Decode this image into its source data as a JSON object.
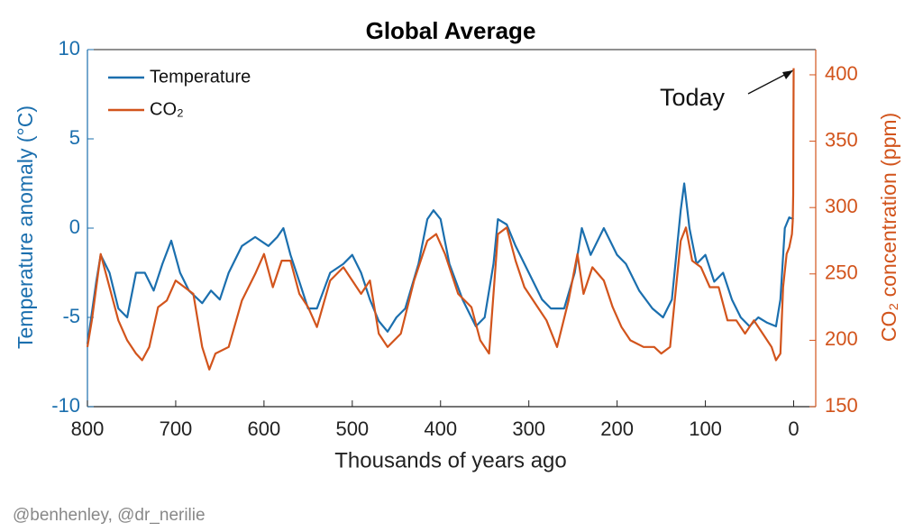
{
  "chart_data": {
    "type": "line",
    "title": "Global Average",
    "x_label": "Thousands of years ago",
    "y_label": "Temperature anomaly (°C)",
    "y2_label": "CO₂ concentration (ppm)",
    "xlim": [
      800,
      -25
    ],
    "xticks": [
      800,
      700,
      600,
      500,
      400,
      300,
      200,
      100,
      0
    ],
    "ylim": [
      -10,
      10
    ],
    "yticks": [
      -10,
      -5,
      0,
      5,
      10
    ],
    "y2lim": [
      150,
      419
    ],
    "y2ticks": [
      150,
      200,
      250,
      300,
      350,
      400
    ],
    "legend": "upper left",
    "annotations": [
      {
        "text": "Today"
      }
    ],
    "source": "@benhenley, @dr_nerilie",
    "series": [
      {
        "name": "Temperature",
        "color": "#1b6fae",
        "x": [
          800,
          790,
          785,
          775,
          765,
          755,
          745,
          735,
          725,
          715,
          705,
          695,
          685,
          670,
          660,
          650,
          640,
          625,
          610,
          595,
          585,
          578,
          570,
          560,
          550,
          540,
          525,
          510,
          500,
          490,
          480,
          470,
          460,
          450,
          440,
          425,
          415,
          408,
          400,
          390,
          375,
          360,
          350,
          340,
          335,
          325,
          315,
          300,
          285,
          275,
          260,
          248,
          240,
          230,
          215,
          200,
          190,
          175,
          160,
          148,
          138,
          128,
          124,
          118,
          110,
          100,
          90,
          80,
          70,
          60,
          50,
          40,
          30,
          20,
          15,
          10,
          5,
          0
        ],
        "values": [
          -6.5,
          -3,
          -1.5,
          -2.5,
          -4.5,
          -5,
          -2.5,
          -2.5,
          -3.5,
          -2,
          -0.7,
          -2.5,
          -3.5,
          -4.2,
          -3.5,
          -4,
          -2.5,
          -1,
          -0.5,
          -1,
          -0.5,
          0,
          -1.5,
          -3,
          -4.5,
          -4.5,
          -2.5,
          -2,
          -1.5,
          -2.5,
          -4,
          -5.2,
          -5.8,
          -5,
          -4.5,
          -2,
          0.5,
          1,
          0.5,
          -2,
          -4,
          -5.5,
          -5,
          -2,
          0.5,
          0.2,
          -1,
          -2.5,
          -4,
          -4.5,
          -4.5,
          -2.5,
          0,
          -1.5,
          0,
          -1.5,
          -2,
          -3.5,
          -4.5,
          -5,
          -4,
          1,
          2.5,
          0,
          -2,
          -1.5,
          -3,
          -2.5,
          -4,
          -5,
          -5.5,
          -5,
          -5.3,
          -5.5,
          -4,
          0,
          0.6,
          0.5
        ]
      },
      {
        "name": "CO₂",
        "color": "#d2541c",
        "axis": "y2",
        "x": [
          800,
          795,
          785,
          775,
          765,
          755,
          745,
          738,
          730,
          720,
          710,
          700,
          690,
          680,
          670,
          662,
          655,
          640,
          625,
          610,
          600,
          590,
          580,
          570,
          560,
          550,
          540,
          525,
          510,
          500,
          490,
          480,
          470,
          460,
          445,
          430,
          415,
          405,
          395,
          380,
          365,
          355,
          345,
          335,
          325,
          315,
          305,
          290,
          280,
          268,
          255,
          245,
          238,
          228,
          215,
          205,
          195,
          185,
          170,
          158,
          150,
          140,
          128,
          122,
          115,
          105,
          95,
          85,
          75,
          65,
          55,
          45,
          35,
          25,
          20,
          15,
          12,
          8,
          5,
          2,
          1,
          0.5,
          0
        ],
        "values": [
          195,
          215,
          265,
          240,
          215,
          200,
          190,
          185,
          195,
          225,
          230,
          245,
          240,
          235,
          195,
          178,
          190,
          195,
          230,
          250,
          265,
          240,
          260,
          260,
          235,
          225,
          210,
          245,
          255,
          245,
          235,
          245,
          205,
          195,
          205,
          245,
          275,
          280,
          265,
          235,
          225,
          200,
          190,
          280,
          285,
          260,
          240,
          225,
          215,
          195,
          230,
          265,
          235,
          255,
          245,
          225,
          210,
          200,
          195,
          195,
          190,
          195,
          275,
          285,
          260,
          255,
          240,
          240,
          215,
          215,
          205,
          215,
          205,
          195,
          185,
          190,
          240,
          265,
          270,
          280,
          290,
          310,
          405
        ]
      }
    ]
  }
}
